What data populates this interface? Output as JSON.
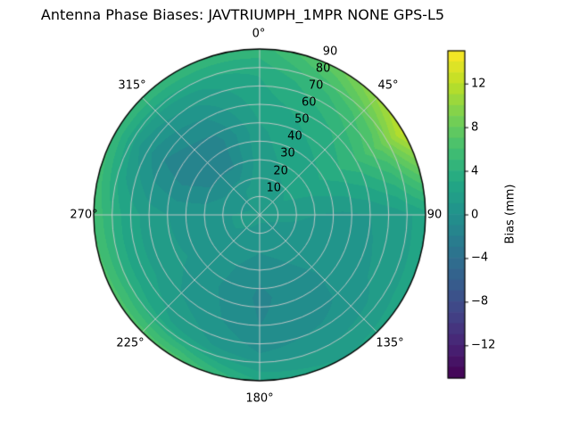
{
  "figure": {
    "title": "Antenna Phase Biases: JAVTRIUMPH_1MPR NONE GPS-L5"
  },
  "chart_data": {
    "type": "heatmap",
    "projection": "polar",
    "title": "Antenna Phase Biases: JAVTRIUMPH_1MPR NONE GPS-L5",
    "theta_direction": "clockwise-from-top",
    "theta_ticks": [
      {
        "angle_deg": 0,
        "label": "0°"
      },
      {
        "angle_deg": 45,
        "label": "45°"
      },
      {
        "angle_deg": 90,
        "label": "90"
      },
      {
        "angle_deg": 135,
        "label": "135°"
      },
      {
        "angle_deg": 180,
        "label": "180°"
      },
      {
        "angle_deg": 225,
        "label": "225°"
      },
      {
        "angle_deg": 270,
        "label": "270°"
      },
      {
        "angle_deg": 315,
        "label": "315°"
      }
    ],
    "r_ticks": [
      10,
      20,
      30,
      40,
      50,
      60,
      70,
      80,
      90
    ],
    "r_label_angle_deg": 22.5,
    "r_max_zenith_deg": 90,
    "colormap": "viridis",
    "colorbar": {
      "label": "Bias (mm)",
      "vmin": -15,
      "vmax": 15,
      "levels": 30,
      "ticks": [
        {
          "value": 12,
          "label": "12"
        },
        {
          "value": 8,
          "label": "8"
        },
        {
          "value": 4,
          "label": "4"
        },
        {
          "value": 0,
          "label": "0"
        },
        {
          "value": -4,
          "label": "−4"
        },
        {
          "value": -8,
          "label": "−8"
        },
        {
          "value": -12,
          "label": "−12"
        }
      ]
    },
    "grid": {
      "azimuth_deg": [
        0,
        30,
        60,
        90,
        120,
        150,
        180,
        210,
        240,
        270,
        300,
        330
      ],
      "zenith_deg": [
        0,
        15,
        30,
        45,
        60,
        75,
        90
      ],
      "bias_mm": [
        [
          1.2,
          1.2,
          1.2,
          1.2,
          1.2,
          1.2,
          1.2,
          1.2,
          1.2,
          1.2,
          1.2,
          1.2
        ],
        [
          1.5,
          1.8,
          2.0,
          1.2,
          0.8,
          0.6,
          0.5,
          0.8,
          1.0,
          1.0,
          0.6,
          1.0
        ],
        [
          1.6,
          2.2,
          2.5,
          1.0,
          0.6,
          0.0,
          -0.8,
          0.2,
          0.8,
          0.6,
          -1.0,
          -1.2
        ],
        [
          1.8,
          2.8,
          3.5,
          0.8,
          0.5,
          -0.5,
          -1.2,
          0.0,
          1.0,
          0.8,
          -1.8,
          -1.5
        ],
        [
          2.5,
          3.5,
          5.0,
          1.0,
          0.8,
          -0.5,
          -1.0,
          0.5,
          1.5,
          1.5,
          -1.0,
          0.0
        ],
        [
          3.0,
          5.0,
          7.5,
          1.5,
          1.2,
          0.5,
          0.0,
          1.5,
          3.0,
          3.0,
          1.0,
          1.8
        ],
        [
          4.5,
          8.0,
          12.5,
          2.5,
          2.5,
          2.0,
          3.0,
          6.5,
          6.5,
          6.0,
          5.0,
          5.0
        ]
      ]
    }
  },
  "colors": {
    "background": "#ffffff",
    "grid_line": "#cccccc",
    "spine": "#000000",
    "viridis_stops": [
      [
        0.0,
        "#440154"
      ],
      [
        0.1,
        "#482475"
      ],
      [
        0.2,
        "#414487"
      ],
      [
        0.3,
        "#355f8d"
      ],
      [
        0.4,
        "#2a788e"
      ],
      [
        0.5,
        "#21918c"
      ],
      [
        0.6,
        "#22a884"
      ],
      [
        0.7,
        "#44bf70"
      ],
      [
        0.8,
        "#7ad151"
      ],
      [
        0.9,
        "#bddf26"
      ],
      [
        1.0,
        "#fde725"
      ]
    ]
  }
}
